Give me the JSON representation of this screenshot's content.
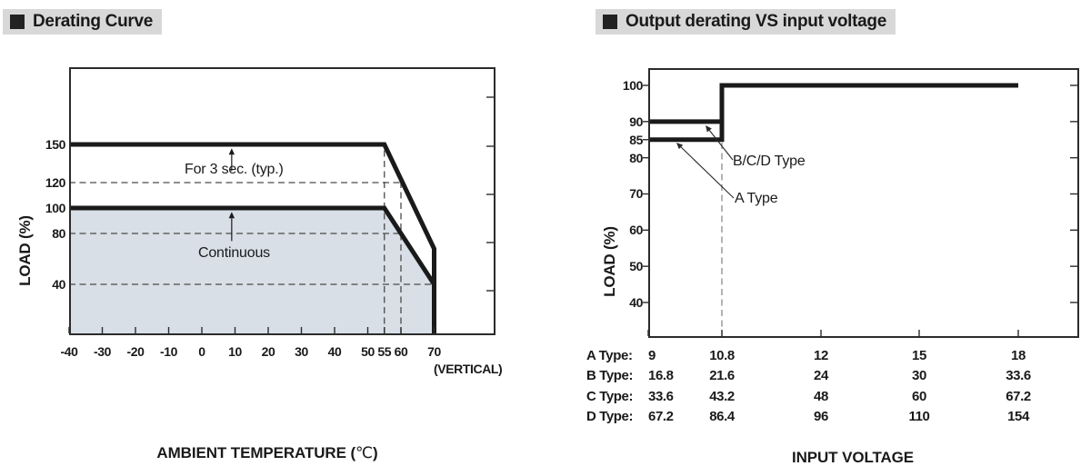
{
  "page": {
    "background": "#ffffff"
  },
  "charts": [
    {
      "id": "derating-curve",
      "type": "line",
      "title": "Derating Curve",
      "ylabel": "LOAD (%)",
      "xlabel_main": "AMBIENT TEMPERATURE (",
      "xlabel_unit": "℃",
      "xlabel_close": ")",
      "vertical_note": "(VERTICAL)",
      "x_ticks": [
        -40,
        -30,
        -20,
        -10,
        0,
        10,
        20,
        30,
        40,
        50,
        55,
        60,
        70
      ],
      "y_tick_labels": [
        150,
        120,
        100,
        80,
        40
      ],
      "x_range": [
        -40,
        88.5
      ],
      "y_range": [
        0,
        210
      ],
      "grid": false,
      "series": [
        {
          "name": "For 3 sec. (typ.)",
          "points": [
            [
              -40,
              150
            ],
            [
              55,
              150
            ],
            [
              70,
              68
            ],
            [
              70,
              0
            ]
          ],
          "fill": false
        },
        {
          "name": "Continuous",
          "points": [
            [
              -40,
              100
            ],
            [
              55,
              100
            ],
            [
              70,
              40
            ],
            [
              70,
              0
            ]
          ],
          "fill": true
        }
      ],
      "ref_lines_h": [
        {
          "y": 120,
          "x1": -40,
          "x2": 60
        },
        {
          "y": 80,
          "x1": -40,
          "x2": 60
        },
        {
          "y": 40,
          "x1": -40,
          "x2": 70
        }
      ],
      "ref_lines_v": [
        {
          "x": 55,
          "y_top": 150
        },
        {
          "x": 60,
          "y_top": 120
        }
      ],
      "annotations": [
        {
          "text": "For 3 sec. (typ.)"
        },
        {
          "text": "Continuous"
        }
      ],
      "colors": {
        "line": "#1a1a1a",
        "fill": "#d9dfe7",
        "dash": "#4a4a4a",
        "axis": "#2b2b2b"
      }
    },
    {
      "id": "output-derating-vs-input-voltage",
      "type": "line",
      "title": "Output derating VS input voltage",
      "ylabel": "LOAD (%)",
      "xlabel": "INPUT VOLTAGE",
      "y_tick_labels": [
        100,
        90,
        85,
        80,
        70,
        60,
        50,
        40
      ],
      "y_ticks_right": [
        100,
        90,
        80,
        70,
        60,
        50,
        40
      ],
      "x_ticks_a_type": [
        9,
        10.8,
        12,
        15,
        18
      ],
      "y_range": [
        30,
        105
      ],
      "grid": false,
      "series": [
        {
          "name": "B/C/D Type",
          "points": [
            [
              9,
              90
            ],
            [
              10.8,
              90
            ],
            [
              10.8,
              100
            ],
            [
              18,
              100
            ]
          ]
        },
        {
          "name": "A Type",
          "points": [
            [
              9,
              85
            ],
            [
              10.8,
              85
            ],
            [
              10.8,
              100
            ],
            [
              18,
              100
            ]
          ]
        }
      ],
      "ref_lines_v": [
        {
          "x": 10.8,
          "y_top": 85
        }
      ],
      "annotations": [
        {
          "text": "B/C/D Type"
        },
        {
          "text": "A Type"
        }
      ],
      "input_table": {
        "rows": [
          {
            "label": "A Type:",
            "values": [
              "9",
              "10.8",
              "12",
              "15",
              "18"
            ]
          },
          {
            "label": "B Type:",
            "values": [
              "16.8",
              "21.6",
              "24",
              "30",
              "33.6"
            ]
          },
          {
            "label": "C Type:",
            "values": [
              "33.6",
              "43.2",
              "48",
              "60",
              "67.2"
            ]
          },
          {
            "label": "D Type:",
            "values": [
              "67.2",
              "86.4",
              "96",
              "110",
              "154"
            ]
          }
        ]
      },
      "colors": {
        "line": "#1a1a1a",
        "dash": "#8a8a8a",
        "axis": "#2b2b2b"
      }
    }
  ]
}
